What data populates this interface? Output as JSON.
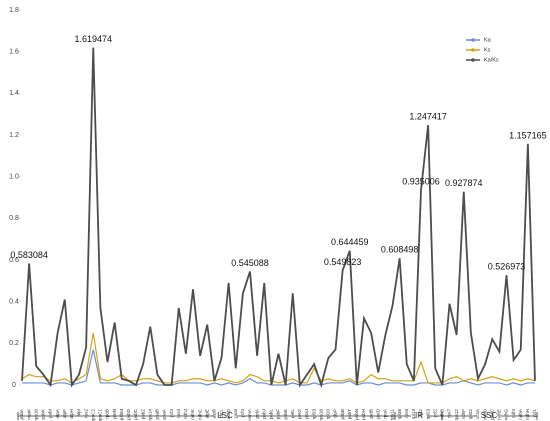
{
  "chart_data": {
    "type": "line",
    "categories": [
      "psbA",
      "matK",
      "rps16",
      "psbK",
      "psbI",
      "atpA",
      "atpF",
      "atpH",
      "atpI",
      "rps2",
      "rpoC2",
      "rpoC1",
      "rpoB",
      "petN",
      "psbM",
      "psbD",
      "psbC",
      "psbZ",
      "rps14",
      "psaB",
      "psaA",
      "ycf3",
      "rps4",
      "ndhJ",
      "ndhK",
      "ndhC",
      "atpE",
      "atpB",
      "rbcL",
      "accD",
      "psaI",
      "ycf4",
      "cemA",
      "petA",
      "psbJ",
      "psbL",
      "psbF",
      "psbE",
      "petL",
      "petG",
      "psaJ",
      "rpl33",
      "rps18",
      "rpl20",
      "clpP",
      "psbB",
      "psbT",
      "psbN",
      "psbH",
      "petB",
      "petD",
      "rpoA",
      "rps11",
      "rpl36",
      "rps8",
      "rpl14",
      "rpl2",
      "rpl23",
      "ycf2",
      "ndhB",
      "rps7",
      "rps12",
      "ndhF",
      "rpl32",
      "ccsA",
      "ndhD",
      "psaC",
      "ndhE",
      "ndhG",
      "ndhI",
      "ndhA",
      "ndhH",
      "ycf1"
    ],
    "series": [
      {
        "name": "Ka",
        "color": "#6a8fd0",
        "values": [
          0.01,
          0.01,
          0.01,
          0.01,
          0.0,
          0.01,
          0.01,
          0.0,
          0.01,
          0.02,
          0.17,
          0.01,
          0.01,
          0.01,
          0.0,
          0.0,
          0.0,
          0.01,
          0.01,
          0.0,
          0.0,
          0.0,
          0.01,
          0.01,
          0.01,
          0.01,
          0.0,
          0.01,
          0.0,
          0.01,
          0.0,
          0.01,
          0.03,
          0.01,
          0.01,
          0.0,
          0.0,
          0.0,
          0.01,
          0.0,
          0.0,
          0.01,
          0.0,
          0.01,
          0.01,
          0.01,
          0.02,
          0.0,
          0.01,
          0.01,
          0.0,
          0.01,
          0.01,
          0.01,
          0.0,
          0.0,
          0.01,
          0.01,
          0.0,
          0.0,
          0.01,
          0.01,
          0.02,
          0.01,
          0.0,
          0.01,
          0.01,
          0.01,
          0.0,
          0.01,
          0.0,
          0.01,
          0.01
        ]
      },
      {
        "name": "Ks",
        "color": "#d4a017",
        "values": [
          0.03,
          0.05,
          0.04,
          0.04,
          0.02,
          0.02,
          0.03,
          0.01,
          0.03,
          0.05,
          0.25,
          0.03,
          0.02,
          0.03,
          0.05,
          0.02,
          0.02,
          0.03,
          0.03,
          0.02,
          0.01,
          0.01,
          0.02,
          0.02,
          0.03,
          0.03,
          0.02,
          0.02,
          0.03,
          0.02,
          0.01,
          0.02,
          0.05,
          0.04,
          0.02,
          0.02,
          0.01,
          0.02,
          0.03,
          0.01,
          0.01,
          0.08,
          0.02,
          0.03,
          0.02,
          0.02,
          0.03,
          0.01,
          0.02,
          0.05,
          0.03,
          0.03,
          0.02,
          0.02,
          0.02,
          0.02,
          0.11,
          0.01,
          0.01,
          0.01,
          0.03,
          0.04,
          0.02,
          0.03,
          0.02,
          0.03,
          0.04,
          0.03,
          0.02,
          0.03,
          0.02,
          0.03,
          0.02
        ]
      },
      {
        "name": "Ka/Ks",
        "color": "#4d4d4d",
        "values": [
          0.02,
          0.583084,
          0.09,
          0.05,
          0.0,
          0.25,
          0.41,
          0.0,
          0.05,
          0.18,
          1.619474,
          0.37,
          0.11,
          0.3,
          0.03,
          0.02,
          0.0,
          0.1,
          0.28,
          0.05,
          0.0,
          0.0,
          0.37,
          0.15,
          0.46,
          0.14,
          0.29,
          0.02,
          0.13,
          0.49,
          0.08,
          0.44,
          0.545088,
          0.14,
          0.49,
          0.0,
          0.15,
          0.0,
          0.44,
          0.0,
          0.05,
          0.1,
          0.0,
          0.13,
          0.17,
          0.549823,
          0.644459,
          0.0,
          0.32,
          0.25,
          0.06,
          0.24,
          0.38,
          0.608498,
          0.1,
          0.02,
          0.935006,
          1.247417,
          0.08,
          0.0,
          0.39,
          0.24,
          0.927874,
          0.25,
          0.03,
          0.1,
          0.22,
          0.16,
          0.526973,
          0.12,
          0.17,
          1.157165,
          0.02
        ],
        "value_labels": [
          null,
          "0.583084",
          null,
          null,
          null,
          null,
          null,
          null,
          null,
          null,
          "1.619474",
          null,
          null,
          null,
          null,
          null,
          null,
          null,
          null,
          null,
          null,
          null,
          null,
          null,
          null,
          null,
          null,
          null,
          null,
          null,
          null,
          null,
          "0.545088",
          null,
          null,
          null,
          null,
          null,
          null,
          null,
          null,
          null,
          null,
          null,
          null,
          "0.549823",
          "0.644459",
          null,
          null,
          null,
          null,
          null,
          null,
          "0.608498",
          null,
          null,
          "0.935006",
          "1.247417",
          null,
          null,
          null,
          null,
          "0.927874",
          null,
          null,
          null,
          null,
          null,
          "0.526973",
          null,
          null,
          "1.157165",
          null
        ]
      }
    ],
    "ylim": [
      0,
      1.8
    ],
    "yticks": [
      0,
      0.2,
      0.4,
      0.6,
      0.8,
      {
        "value": 1,
        "label": "1.0"
      },
      1.2,
      1.4,
      1.6,
      1.8
    ],
    "regions": [
      "LSC",
      "IR",
      "SSC"
    ],
    "legend": "upper right"
  }
}
